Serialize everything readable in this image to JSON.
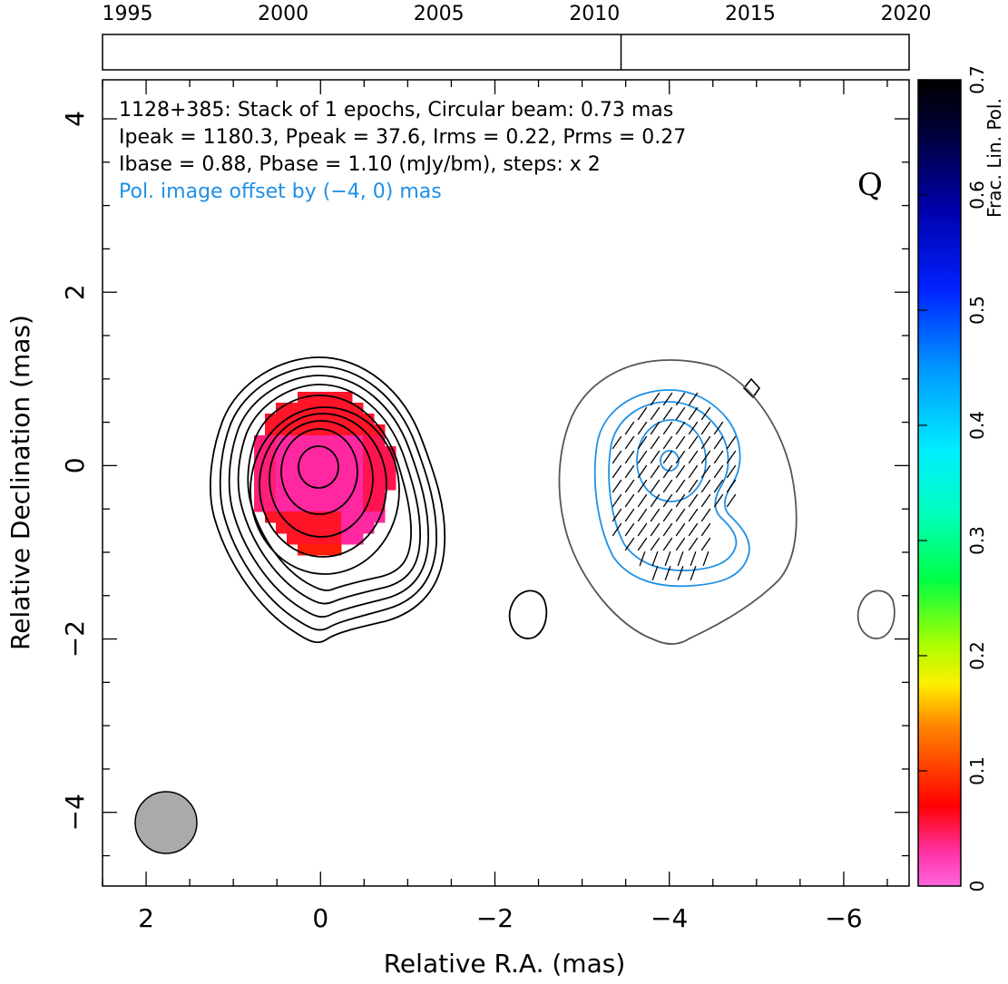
{
  "timeline": {
    "years": [
      "1995",
      "2000",
      "2005",
      "2010",
      "2015",
      "2020"
    ],
    "year_values": [
      1995,
      2000,
      2005,
      2010,
      2015,
      2020
    ],
    "range": [
      1994.2,
      2020.1
    ],
    "epochs": [
      2010.85
    ]
  },
  "info": {
    "line1": "1128+385: Stack of 1 epochs, Circular beam: 0.73 mas",
    "line2": "Ipeak = 1180.3, Ppeak = 37.6, Irms = 0.22, Prms = 0.27",
    "line3": "Ibase = 0.88, Pbase = 1.10 (mJy/bm), steps: x 2",
    "line4": "Pol. image offset by (−4, 0) mas",
    "band": "Q",
    "line4_color": "#1e90e6"
  },
  "chart_data": {
    "type": "contour",
    "xlabel": "Relative R.A. (mas)",
    "ylabel": "Relative Declination (mas)",
    "xlim": [
      2.5,
      -6.75
    ],
    "ylim": [
      -4.85,
      4.45
    ],
    "xticks": [
      2,
      0,
      -2,
      -4,
      -6
    ],
    "xtick_labels": [
      "2",
      "0",
      "−2",
      "−4",
      "−6"
    ],
    "yticks": [
      -4,
      -2,
      0,
      2,
      4
    ],
    "ytick_labels": [
      "−4",
      "−2",
      "0",
      "2",
      "4"
    ],
    "beam": {
      "diameter_mas": 0.73,
      "center": [
        1.75,
        -4.1
      ]
    },
    "colorbar": {
      "label": "Frac. Lin. Pol.",
      "range": [
        0,
        0.7
      ],
      "ticks": [
        0,
        0.1,
        0.2,
        0.3,
        0.4,
        0.5,
        0.6,
        0.7
      ],
      "tick_labels": [
        "0",
        "0.1",
        "0.2",
        "0.3",
        "0.4",
        "0.5",
        "0.6",
        "0.7"
      ]
    },
    "fractional_pol_range": [
      0.02,
      0.07
    ],
    "stokes_I_contours": {
      "color": "#000000",
      "count": 10,
      "center": [
        0,
        0
      ]
    },
    "pol_contours": {
      "color": "#1e90e6",
      "count": 4,
      "center": [
        -4,
        0
      ]
    },
    "outer_contour_color": "#555555"
  }
}
